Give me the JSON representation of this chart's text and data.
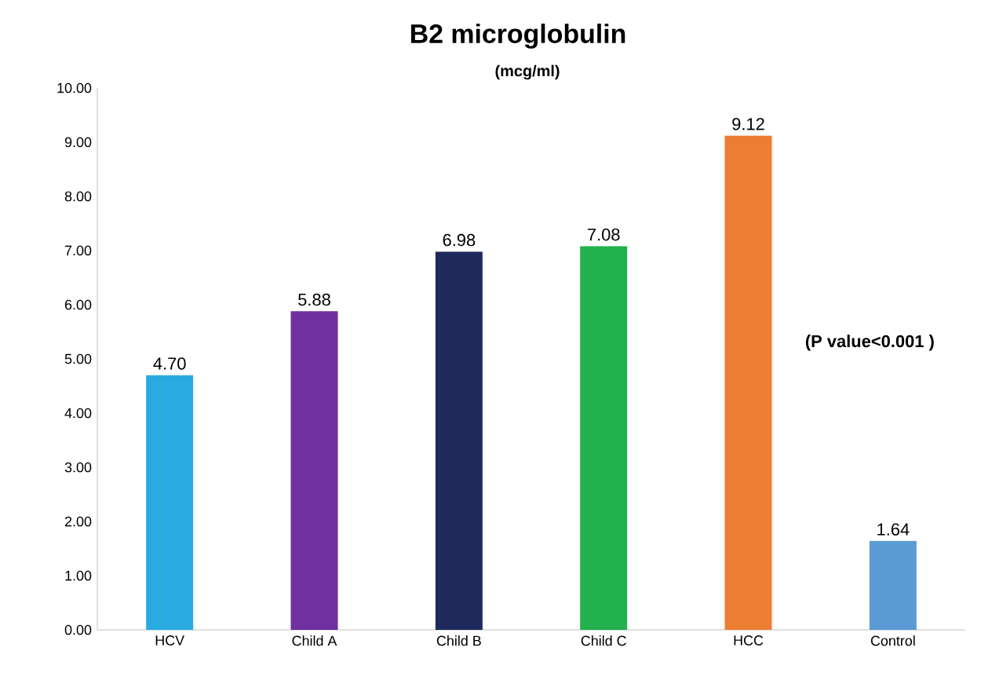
{
  "chart_data": {
    "type": "bar",
    "title": "B2 microglobulin",
    "subtitle": "(mcg/ml)",
    "categories": [
      "HCV",
      "Child A",
      "Child B",
      "Child C",
      "HCC",
      "Control"
    ],
    "values": [
      4.7,
      5.88,
      6.98,
      7.08,
      9.12,
      1.64
    ],
    "value_labels": [
      "4.70",
      "5.88",
      "6.98",
      "7.08",
      "9.12",
      "1.64"
    ],
    "colors": [
      "#29abe2",
      "#7030a0",
      "#1f2a5c",
      "#22b14c",
      "#ed7d31",
      "#5b9bd5"
    ],
    "ylim": [
      0,
      10
    ],
    "yticks": [
      {
        "value": 0,
        "label": "0.00"
      },
      {
        "value": 1,
        "label": "1.00"
      },
      {
        "value": 2,
        "label": "2.00"
      },
      {
        "value": 3,
        "label": "3.00"
      },
      {
        "value": 4,
        "label": "4.00"
      },
      {
        "value": 5,
        "label": "5.00"
      },
      {
        "value": 6,
        "label": "6.00"
      },
      {
        "value": 7,
        "label": "7.00"
      },
      {
        "value": 8,
        "label": "8.00"
      },
      {
        "value": 9,
        "label": "9.00"
      },
      {
        "value": 10,
        "label": "10.00"
      }
    ],
    "annotations": [
      "(P value<0.001 )"
    ],
    "grid": false
  }
}
